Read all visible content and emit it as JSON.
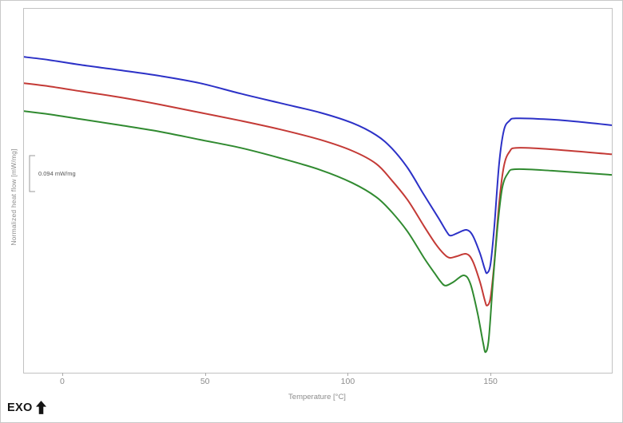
{
  "figure": {
    "background": "#ffffff",
    "plot_border_color": "#c2c2c2",
    "exo_label": "EXO",
    "scale_bar": {
      "label": "0.094 mW/mg",
      "value_mw_per_mg": 0.094,
      "bracket_color": "#9a9a9a"
    }
  },
  "chart_data": {
    "type": "line",
    "title": "",
    "xlabel": "Temperature [°C]",
    "ylabel": "Normalized heat flow [mW/mg]",
    "x_range": [
      -13.7,
      192.2
    ],
    "y_range": [
      0,
      0.953
    ],
    "x_ticks": [
      0,
      50,
      100,
      150
    ],
    "grid": false,
    "legend": "none",
    "tick_color": "#8c8c8c",
    "description": "Three vertically offset DSC heating curves with a small endothermic dip near 135 °C, a shoulder near 141 °C and a sharp main melting minimum near 148.5 °C; y values are relative heat flow in mW/mg estimated from the 0.094 mW/mg scale bar.",
    "series": [
      {
        "name": "blue",
        "color": "#2c31c7",
        "points": [
          [
            -13.7,
            0.827
          ],
          [
            -5,
            0.819
          ],
          [
            6.2,
            0.806
          ],
          [
            20.1,
            0.792
          ],
          [
            34.1,
            0.777
          ],
          [
            48.1,
            0.758
          ],
          [
            62.1,
            0.731
          ],
          [
            76.1,
            0.706
          ],
          [
            90.1,
            0.681
          ],
          [
            101.3,
            0.654
          ],
          [
            109.7,
            0.622
          ],
          [
            115.2,
            0.587
          ],
          [
            120.8,
            0.535
          ],
          [
            126.4,
            0.466
          ],
          [
            131.5,
            0.405
          ],
          [
            134.3,
            0.37
          ],
          [
            135.7,
            0.359
          ],
          [
            138.2,
            0.366
          ],
          [
            141.3,
            0.374
          ],
          [
            143.5,
            0.359
          ],
          [
            146,
            0.313
          ],
          [
            147.7,
            0.272
          ],
          [
            148.5,
            0.261
          ],
          [
            149.7,
            0.284
          ],
          [
            151,
            0.378
          ],
          [
            152.7,
            0.545
          ],
          [
            154.4,
            0.635
          ],
          [
            156.4,
            0.66
          ],
          [
            158.6,
            0.666
          ],
          [
            168.4,
            0.664
          ],
          [
            179.6,
            0.658
          ],
          [
            192.2,
            0.648
          ]
        ]
      },
      {
        "name": "red",
        "color": "#c43a36",
        "points": [
          [
            -13.7,
            0.758
          ],
          [
            -5,
            0.75
          ],
          [
            6.2,
            0.737
          ],
          [
            20.1,
            0.721
          ],
          [
            34.1,
            0.702
          ],
          [
            48.1,
            0.681
          ],
          [
            62.1,
            0.66
          ],
          [
            76.1,
            0.637
          ],
          [
            90.1,
            0.61
          ],
          [
            101.3,
            0.581
          ],
          [
            109.7,
            0.547
          ],
          [
            115.2,
            0.503
          ],
          [
            120.8,
            0.451
          ],
          [
            126.4,
            0.384
          ],
          [
            130.6,
            0.336
          ],
          [
            133.4,
            0.311
          ],
          [
            135.4,
            0.301
          ],
          [
            137.9,
            0.305
          ],
          [
            141.3,
            0.311
          ],
          [
            143.5,
            0.292
          ],
          [
            146,
            0.238
          ],
          [
            147.7,
            0.19
          ],
          [
            148.5,
            0.176
          ],
          [
            149.7,
            0.196
          ],
          [
            151,
            0.284
          ],
          [
            152.7,
            0.441
          ],
          [
            154.4,
            0.541
          ],
          [
            156.4,
            0.579
          ],
          [
            159.1,
            0.589
          ],
          [
            171.2,
            0.585
          ],
          [
            192.2,
            0.572
          ]
        ]
      },
      {
        "name": "green",
        "color": "#308a30",
        "points": [
          [
            -13.7,
            0.685
          ],
          [
            -5,
            0.677
          ],
          [
            6.2,
            0.664
          ],
          [
            20.1,
            0.648
          ],
          [
            34.1,
            0.631
          ],
          [
            48.1,
            0.61
          ],
          [
            62.1,
            0.589
          ],
          [
            76.1,
            0.562
          ],
          [
            90.1,
            0.531
          ],
          [
            101.3,
            0.497
          ],
          [
            109.7,
            0.46
          ],
          [
            115.2,
            0.42
          ],
          [
            120.8,
            0.368
          ],
          [
            126.4,
            0.301
          ],
          [
            130.1,
            0.261
          ],
          [
            132.3,
            0.238
          ],
          [
            134,
            0.228
          ],
          [
            136.8,
            0.238
          ],
          [
            140.4,
            0.255
          ],
          [
            142.7,
            0.232
          ],
          [
            145.2,
            0.155
          ],
          [
            147.1,
            0.079
          ],
          [
            148,
            0.054
          ],
          [
            149.1,
            0.088
          ],
          [
            150.5,
            0.23
          ],
          [
            152.2,
            0.384
          ],
          [
            153.8,
            0.483
          ],
          [
            155.8,
            0.522
          ],
          [
            158.6,
            0.533
          ],
          [
            171.2,
            0.529
          ],
          [
            192.2,
            0.518
          ]
        ]
      }
    ]
  }
}
